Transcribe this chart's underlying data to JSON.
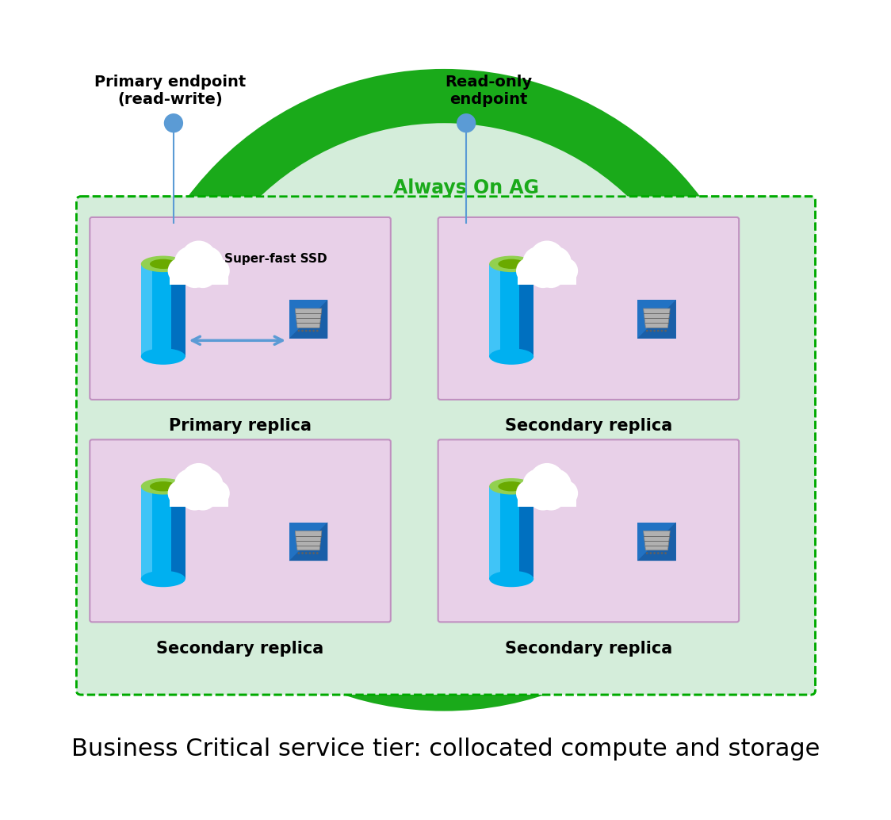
{
  "title": "Business Critical service tier: collocated compute and storage",
  "title_fontsize": 22,
  "bg_color": "#ffffff",
  "outer_ring_color": "#1aaa1a",
  "cluster_bg_color": "#d4edda",
  "cluster_border_color": "#00aa00",
  "node_bg_color": "#e8d0e8",
  "node_border_color": "#c090c0",
  "always_on_ag_text": "Always On AG",
  "always_on_ag_color": "#1aaa1a",
  "primary_endpoint_text": "Primary endpoint\n(read-write)",
  "readonly_endpoint_text": "Read-only\nendpoint",
  "endpoint_color": "#5b9bd5",
  "primary_replica_text": "Primary replica",
  "secondary_replica_text": "Secondary replica",
  "super_fast_ssd_text": "Super-fast SSD",
  "arrow_color": "#5b9bd5",
  "cylinder_color_top": "#92d050",
  "cylinder_color_top_inner": "#6aaa00",
  "cylinder_color_body": "#00b0f0",
  "cylinder_color_side": "#0070c0",
  "cylinder_color_light": "#80d8ff",
  "disk_bg_color": "#2e75b6",
  "cloud_color": "#ffffff"
}
